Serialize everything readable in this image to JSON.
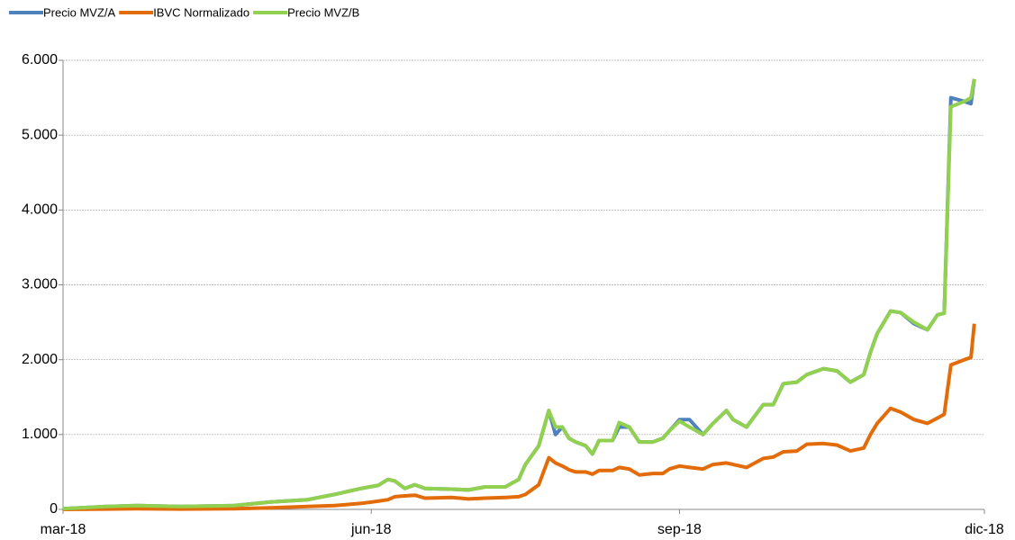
{
  "chart_data": {
    "type": "line",
    "x": [
      0,
      13,
      22,
      35,
      51,
      62,
      73,
      81,
      89,
      94,
      97,
      99,
      102,
      105,
      108,
      116,
      121,
      126,
      132,
      136,
      138,
      142,
      145,
      147,
      149,
      151,
      153,
      156,
      158,
      160,
      164,
      166,
      169,
      172,
      176,
      179,
      181,
      184,
      187,
      191,
      194,
      198,
      200,
      204,
      209,
      212,
      215,
      219,
      222,
      227,
      231,
      235,
      239,
      241,
      243,
      247,
      250,
      254,
      258,
      261,
      263,
      265,
      269,
      271,
      272
    ],
    "xlim": [
      0,
      275
    ],
    "xticks": [
      {
        "value": 0,
        "label": "mar-18"
      },
      {
        "value": 92,
        "label": "jun-18"
      },
      {
        "value": 184,
        "label": "sep-18"
      },
      {
        "value": 275,
        "label": "dic-18"
      }
    ],
    "ylim": [
      0,
      6000
    ],
    "yticks": [
      0,
      {
        "value": 1000,
        "label": "1.000"
      },
      {
        "value": 2000,
        "label": "2.000"
      },
      {
        "value": 3000,
        "label": "3.000"
      },
      {
        "value": 4000,
        "label": "4.000"
      },
      {
        "value": 5000,
        "label": "5.000"
      },
      {
        "value": 6000,
        "label": "6.000"
      }
    ],
    "grid": true,
    "legend": "top-left",
    "series": [
      {
        "name": "Precio MVZ/A",
        "color": "#4f81bd",
        "values": [
          10,
          40,
          50,
          40,
          50,
          100,
          130,
          200,
          280,
          320,
          400,
          380,
          280,
          330,
          280,
          270,
          260,
          300,
          300,
          400,
          600,
          850,
          1320,
          1000,
          1100,
          950,
          900,
          850,
          740,
          920,
          920,
          1100,
          1100,
          900,
          900,
          950,
          1050,
          1200,
          1200,
          1000,
          1150,
          1320,
          1200,
          1100,
          1400,
          1400,
          1680,
          1700,
          1800,
          1880,
          1850,
          1700,
          1800,
          2100,
          2350,
          2650,
          2630,
          2480,
          2400,
          2600,
          2620,
          5500,
          5450,
          5420,
          5750
        ]
      },
      {
        "name": "IBVC Normalizado",
        "color": "#e36c0a",
        "values": [
          0,
          5,
          10,
          5,
          10,
          20,
          40,
          50,
          80,
          110,
          130,
          170,
          180,
          190,
          150,
          160,
          140,
          150,
          160,
          170,
          200,
          330,
          690,
          620,
          580,
          530,
          500,
          500,
          470,
          520,
          520,
          560,
          540,
          460,
          480,
          480,
          540,
          580,
          560,
          540,
          600,
          620,
          600,
          560,
          680,
          700,
          770,
          780,
          870,
          880,
          860,
          780,
          820,
          1000,
          1150,
          1350,
          1300,
          1200,
          1150,
          1220,
          1270,
          1930,
          2000,
          2030,
          2480
        ]
      },
      {
        "name": "Precio MVZ/B",
        "color": "#92d050",
        "values": [
          10,
          40,
          50,
          40,
          50,
          100,
          130,
          200,
          280,
          320,
          400,
          380,
          280,
          330,
          280,
          270,
          260,
          300,
          300,
          400,
          600,
          850,
          1320,
          1100,
          1100,
          950,
          900,
          850,
          740,
          920,
          920,
          1160,
          1100,
          900,
          900,
          950,
          1050,
          1180,
          1100,
          1000,
          1150,
          1320,
          1200,
          1100,
          1400,
          1400,
          1680,
          1700,
          1800,
          1880,
          1850,
          1700,
          1800,
          2100,
          2350,
          2650,
          2630,
          2500,
          2400,
          2600,
          2620,
          5380,
          5450,
          5500,
          5750
        ]
      }
    ]
  }
}
